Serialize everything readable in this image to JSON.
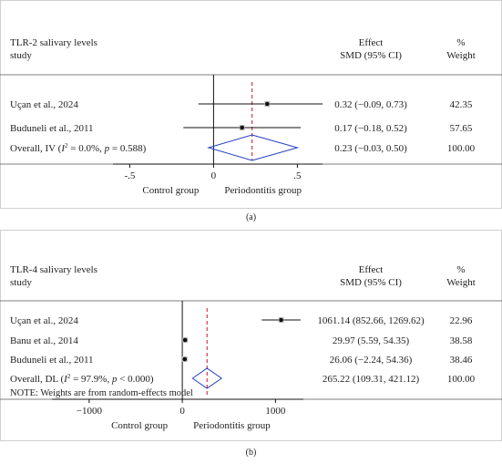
{
  "chart_data": [
    {
      "type": "forest",
      "panel_label": "(a)",
      "header": {
        "title_line1": "TLR-2 salivary levels",
        "title_line2": "study",
        "effect_line1": "Effect",
        "effect_line2": "SMD (95% CI)",
        "weight_line1": "%",
        "weight_line2": "Weight"
      },
      "xlim": [
        -0.6,
        0.65
      ],
      "null_line": 0,
      "pooled_estimate": 0.23,
      "ticks": [
        {
          "value": -0.5,
          "label": "-.5"
        },
        {
          "value": 0,
          "label": "0"
        },
        {
          "value": 0.5,
          "label": ".5"
        }
      ],
      "x_left_label": "Control group",
      "x_right_label": "Periodontitis group",
      "studies": [
        {
          "name": "Uçan et al., 2024",
          "est": 0.32,
          "lo": -0.09,
          "hi": 0.73,
          "ci_text": "0.32 (−0.09, 0.73)",
          "weight_text": "42.35"
        },
        {
          "name": "Buduneli et al., 2011",
          "est": 0.17,
          "lo": -0.18,
          "hi": 0.52,
          "ci_text": "0.17 (−0.18, 0.52)",
          "weight_text": "57.65"
        }
      ],
      "overall": {
        "name_prefix": "Overall, IV (",
        "name_i2": "I",
        "name_i2_sup": "2",
        "name_i2_val": " = 0.0%, ",
        "name_p": "p",
        "name_p_val": " = 0.588)",
        "est": 0.23,
        "lo": -0.03,
        "hi": 0.5,
        "ci_text": "0.23 (−0.03, 0.50)",
        "weight_text": "100.00"
      },
      "note": ""
    },
    {
      "type": "forest",
      "panel_label": "(b)",
      "header": {
        "title_line1": "TLR-4 salivary levels",
        "title_line2": "study",
        "effect_line1": "Effect",
        "effect_line2": "SMD (95% CI)",
        "weight_line1": "%",
        "weight_line2": "Weight"
      },
      "xlim": [
        -1400,
        1300
      ],
      "null_line": 0,
      "pooled_estimate": 265.22,
      "ticks": [
        {
          "value": -1000,
          "label": "−1000"
        },
        {
          "value": 0,
          "label": "0"
        },
        {
          "value": 1000,
          "label": "1000"
        }
      ],
      "x_left_label": "Control group",
      "x_right_label": "Periodontitis group",
      "studies": [
        {
          "name": "Uçan et al., 2024",
          "est": 1061.14,
          "lo": 852.66,
          "hi": 1269.62,
          "ci_text": "1061.14 (852.66, 1269.62)",
          "weight_text": "22.96"
        },
        {
          "name": "Banu et al., 2014",
          "est": 29.97,
          "lo": 5.59,
          "hi": 54.35,
          "ci_text": "29.97 (5.59, 54.35)",
          "weight_text": "38.58"
        },
        {
          "name": "Buduneli et al., 2011",
          "est": 26.06,
          "lo": -2.24,
          "hi": 54.36,
          "ci_text": "26.06 (−2.24, 54.36)",
          "weight_text": "38.46"
        }
      ],
      "overall": {
        "name_prefix": "Overall, DL (",
        "name_i2": "I",
        "name_i2_sup": "2",
        "name_i2_val": " = 97.9%, ",
        "name_p": "p",
        "name_p_val": " < 0.000)",
        "est": 265.22,
        "lo": 109.31,
        "hi": 421.12,
        "ci_text": "265.22 (109.31, 421.12)",
        "weight_text": "100.00"
      },
      "note": "NOTE: Weights are from random-effects model"
    }
  ]
}
